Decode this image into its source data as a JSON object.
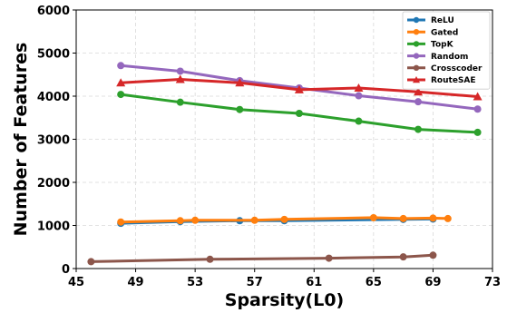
{
  "chart_data": {
    "type": "line",
    "title": "",
    "xlabel": "Sparsity(L0)",
    "ylabel": "Number of Features",
    "xlim": [
      45,
      73
    ],
    "ylim": [
      0,
      6000
    ],
    "xticks": [
      45,
      49,
      53,
      57,
      61,
      65,
      69,
      73
    ],
    "yticks": [
      0,
      1000,
      2000,
      3000,
      4000,
      5000,
      6000
    ],
    "grid": true,
    "legend_position": "top-right",
    "series": [
      {
        "name": "ReLU",
        "color": "#1f77b4",
        "marker": "circle",
        "points": [
          [
            48,
            1050
          ],
          [
            52,
            1090
          ],
          [
            56,
            1110
          ],
          [
            59,
            1110
          ],
          [
            67,
            1140
          ],
          [
            69,
            1150
          ]
        ]
      },
      {
        "name": "Gated",
        "color": "#ff7f0e",
        "marker": "circle",
        "points": [
          [
            48,
            1080
          ],
          [
            52,
            1110
          ],
          [
            53,
            1120
          ],
          [
            57,
            1120
          ],
          [
            59,
            1140
          ],
          [
            65,
            1180
          ],
          [
            67,
            1160
          ],
          [
            69,
            1170
          ],
          [
            70,
            1160
          ]
        ]
      },
      {
        "name": "TopK",
        "color": "#2ca02c",
        "marker": "circle",
        "points": [
          [
            48,
            4040
          ],
          [
            52,
            3860
          ],
          [
            56,
            3690
          ],
          [
            60,
            3600
          ],
          [
            64,
            3420
          ],
          [
            68,
            3230
          ],
          [
            72,
            3160
          ]
        ]
      },
      {
        "name": "Random",
        "color": "#9467bd",
        "marker": "circle",
        "points": [
          [
            48,
            4710
          ],
          [
            52,
            4580
          ],
          [
            56,
            4360
          ],
          [
            60,
            4190
          ],
          [
            64,
            4010
          ],
          [
            68,
            3870
          ],
          [
            72,
            3700
          ]
        ]
      },
      {
        "name": "Crosscoder",
        "color": "#8c564b",
        "marker": "circle",
        "points": [
          [
            46,
            160
          ],
          [
            54,
            215
          ],
          [
            62,
            240
          ],
          [
            67,
            270
          ],
          [
            69,
            310
          ]
        ]
      },
      {
        "name": "RouteSAE",
        "color": "#d62728",
        "marker": "triangle",
        "points": [
          [
            48,
            4310
          ],
          [
            52,
            4390
          ],
          [
            56,
            4310
          ],
          [
            60,
            4150
          ],
          [
            64,
            4190
          ],
          [
            68,
            4100
          ],
          [
            72,
            3990
          ]
        ]
      }
    ]
  }
}
